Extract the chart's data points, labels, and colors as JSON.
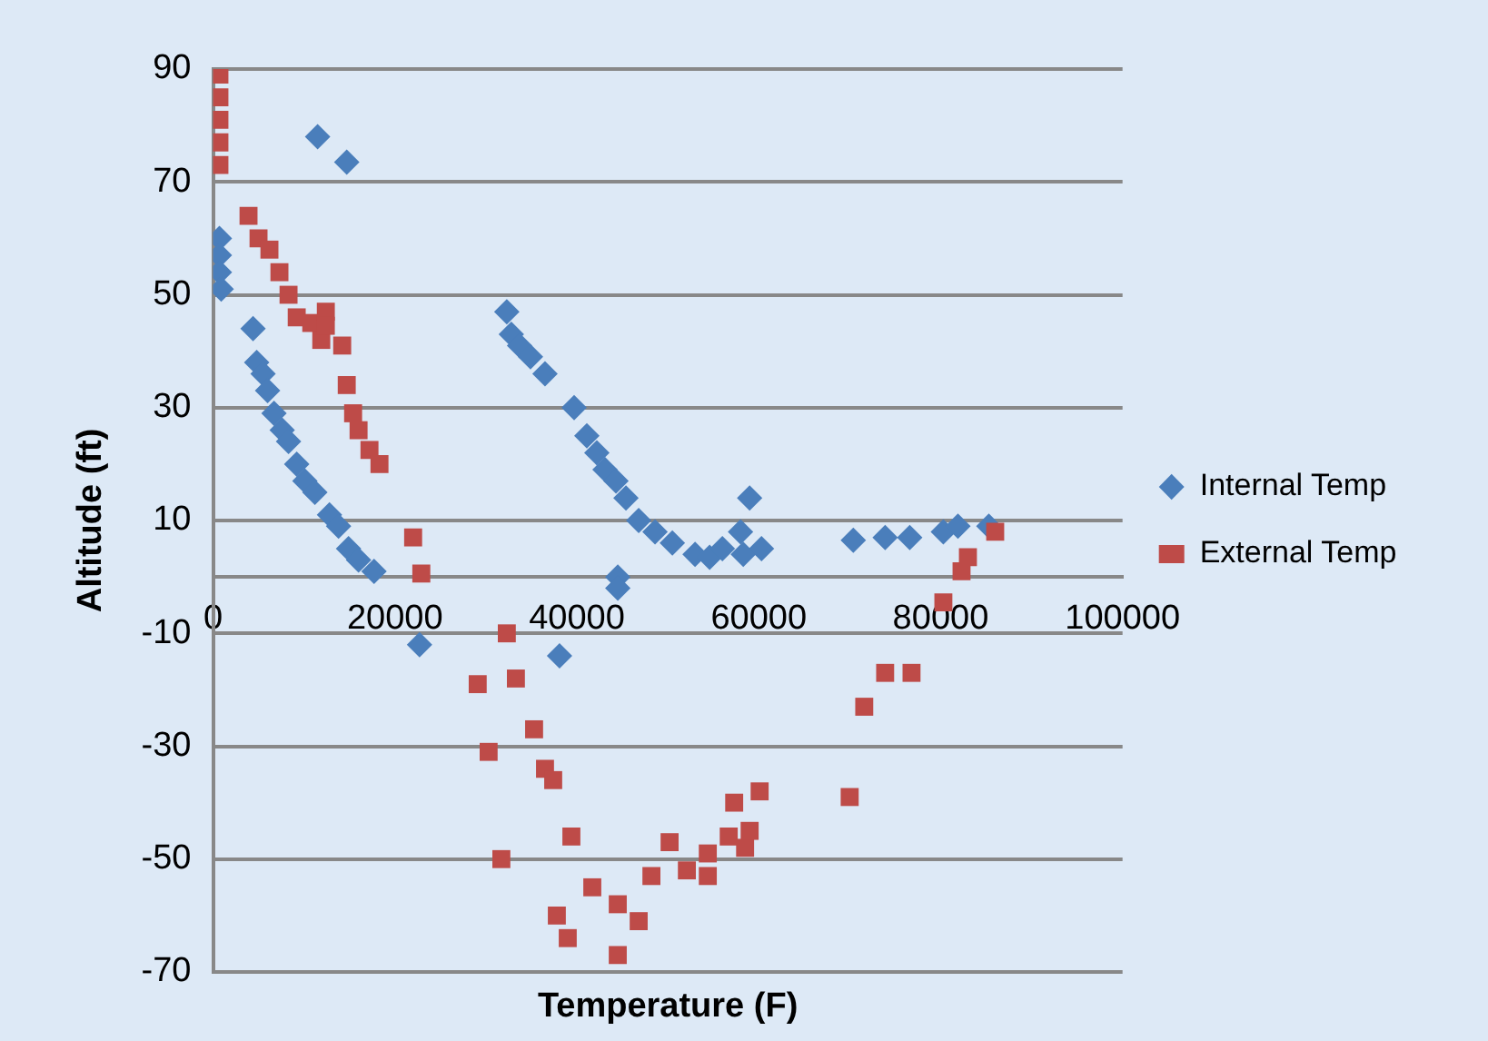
{
  "chart_data": {
    "type": "scatter",
    "xlabel": "Temperature (F)",
    "ylabel": "Altitude (ft)",
    "xlim": [
      0,
      100000
    ],
    "xticks": [
      0,
      20000,
      40000,
      60000,
      80000,
      100000
    ],
    "ylim": [
      -70,
      90
    ],
    "yticks": [
      -70,
      -50,
      -30,
      -10,
      10,
      30,
      50,
      70,
      90
    ],
    "grid": "y",
    "legend": "right",
    "series": [
      {
        "name": "Internal Temp",
        "color": "#4a7ebb",
        "marker": "diamond",
        "x": [
          700,
          700,
          700,
          900,
          4400,
          4800,
          5500,
          6000,
          6700,
          7600,
          8300,
          9200,
          10100,
          11200,
          12800,
          13800,
          14900,
          16000,
          17700,
          11500,
          14700,
          22700,
          32300,
          32800,
          33700,
          34900,
          36500,
          39700,
          41100,
          42200,
          43100,
          44300,
          45400,
          46800,
          48600,
          50500,
          53000,
          54600,
          56000,
          58000,
          59000,
          58300,
          60300,
          44500,
          44500,
          38100,
          70400,
          73900,
          76600,
          80300,
          81900,
          85300
        ],
        "values": [
          60,
          57,
          54,
          51,
          44,
          38,
          36,
          33,
          29,
          26,
          24,
          20,
          17,
          15,
          11,
          9,
          5,
          3,
          1,
          78,
          73.5,
          -12,
          47,
          43,
          41,
          39,
          36,
          30,
          25,
          22,
          19,
          17,
          14,
          10,
          8,
          6,
          4,
          3.5,
          5,
          8,
          14,
          4,
          5,
          0,
          -2,
          -14,
          6.5,
          7,
          7,
          8,
          9,
          9
        ]
      },
      {
        "name": "External Temp",
        "color": "#be4b48",
        "marker": "square",
        "x": [
          700,
          700,
          700,
          700,
          700,
          3900,
          5000,
          6200,
          7300,
          8300,
          9200,
          10800,
          11900,
          12400,
          12400,
          14200,
          14700,
          15400,
          16000,
          17200,
          18300,
          22000,
          22900,
          32300,
          29100,
          33300,
          30300,
          35300,
          36500,
          37400,
          31700,
          39400,
          41700,
          37800,
          39000,
          44500,
          44500,
          46800,
          48200,
          50200,
          52100,
          54400,
          54400,
          56700,
          58500,
          57300,
          60100,
          59000,
          70000,
          71600,
          73900,
          76800,
          80300,
          82300,
          83000,
          86000
        ],
        "values": [
          89,
          85,
          81,
          77,
          73,
          64,
          60,
          58,
          54,
          50,
          46,
          45,
          42,
          47,
          44.5,
          41,
          34,
          29,
          26,
          22.5,
          20,
          7,
          0.6,
          -10,
          -19,
          -18,
          -31,
          -27,
          -34,
          -36,
          -50,
          -46,
          -55,
          -60,
          -64,
          -67,
          -58,
          -61,
          -53,
          -47,
          -52,
          -49,
          -53,
          -46,
          -48,
          -40,
          -38,
          -45,
          -39,
          -23,
          -17,
          -17,
          -4.5,
          1,
          3.5,
          8
        ]
      }
    ]
  }
}
